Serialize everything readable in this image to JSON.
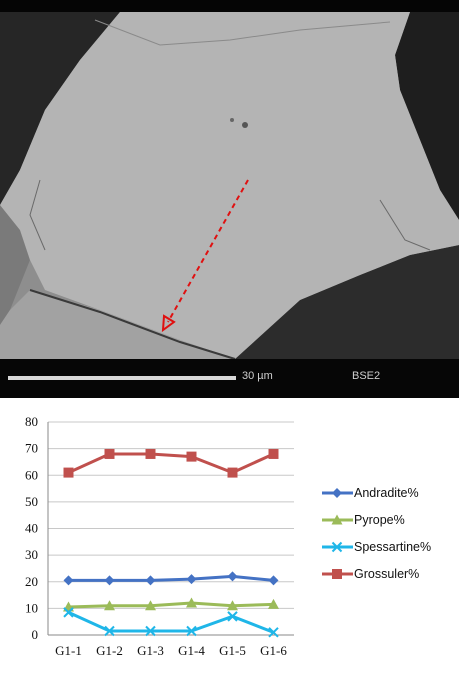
{
  "micrograph": {
    "scale_label": "30 µm",
    "detector_label": "BSE2"
  },
  "chart_data": {
    "type": "line",
    "categories": [
      "G1-1",
      "G1-2",
      "G1-3",
      "G1-4",
      "G1-5",
      "G1-6"
    ],
    "ylim": [
      0,
      80
    ],
    "yticks": [
      0,
      10,
      20,
      30,
      40,
      50,
      60,
      70,
      80
    ],
    "grid": true,
    "legend_position": "right",
    "series": [
      {
        "name": "Andradite%",
        "values": [
          20.5,
          20.5,
          20.5,
          21,
          22,
          20.5
        ],
        "color": "#4472C4",
        "marker": "diamond"
      },
      {
        "name": "Pyrope%",
        "values": [
          10.5,
          11,
          11,
          12,
          11,
          11.5
        ],
        "color": "#9BBB59",
        "marker": "triangle"
      },
      {
        "name": "Spessartine%",
        "values": [
          8.5,
          1.5,
          1.5,
          1.5,
          7,
          1
        ],
        "color": "#1FB6E8",
        "marker": "x"
      },
      {
        "name": "Grossuler%",
        "values": [
          61,
          68,
          68,
          67,
          61,
          68
        ],
        "color": "#C0504D",
        "marker": "square"
      }
    ]
  }
}
